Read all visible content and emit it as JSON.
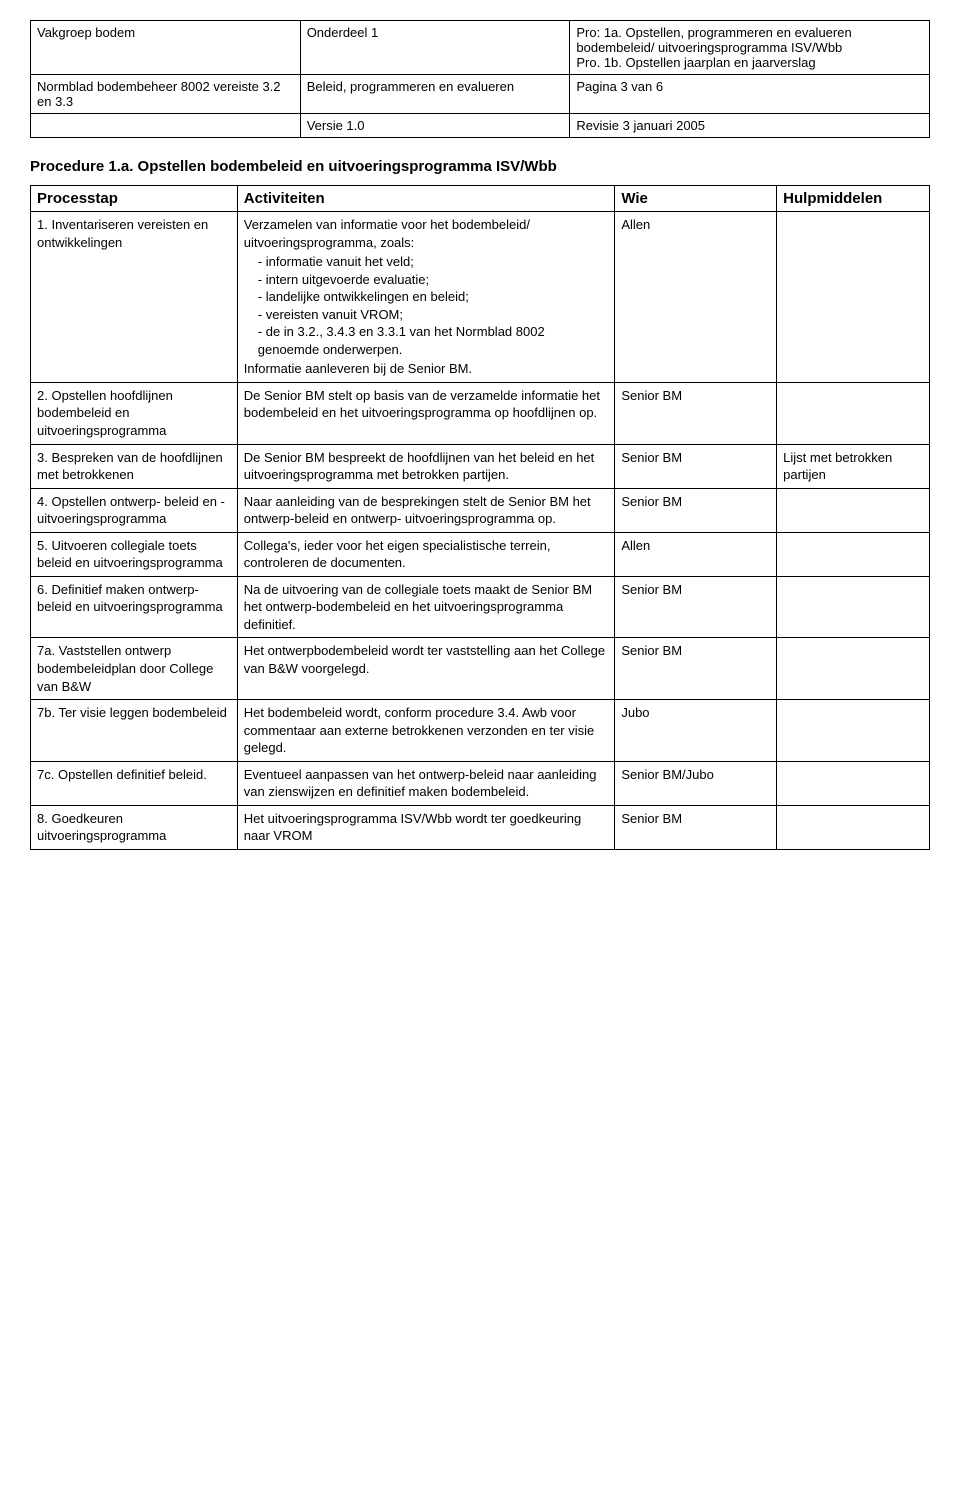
{
  "header": {
    "r1c1": "Vakgroep bodem",
    "r1c2": "Onderdeel 1",
    "r1c3": "Pro: 1a. Opstellen, programmeren en evalueren bodembeleid/ uitvoeringsprogramma ISV/Wbb\nPro. 1b. Opstellen jaarplan en jaarverslag",
    "r2c1": "Normblad bodembeheer 8002 vereiste 3.2 en 3.3",
    "r2c2": "Beleid, programmeren en evalueren",
    "r2c3": "Pagina 3 van 6",
    "r3c2": "Versie 1.0",
    "r3c3": "Revisie 3 januari 2005"
  },
  "sectionTitle": "Procedure 1.a. Opstellen bodembeleid en uitvoeringsprogramma ISV/Wbb",
  "cols": {
    "step": "Processtap",
    "act": "Activiteiten",
    "who": "Wie",
    "aid": "Hulpmiddelen"
  },
  "rows": [
    {
      "step": "1. Inventariseren vereisten en ontwikkelingen",
      "act_intro": "Verzamelen van informatie voor het bodembeleid/ uitvoeringsprogramma, zoals:",
      "act_items": [
        "informatie vanuit het veld;",
        "intern uitgevoerde evaluatie;",
        "landelijke ontwikkelingen en beleid;",
        "vereisten vanuit VROM;",
        "de in 3.2., 3.4.3 en 3.3.1 van het Normblad 8002 genoemde onderwerpen."
      ],
      "act_outro": "Informatie aanleveren bij de Senior BM.",
      "who": "Allen",
      "aid": ""
    },
    {
      "step": "2. Opstellen hoofdlijnen bodembeleid en uitvoeringsprogramma",
      "act": "De Senior BM stelt op basis van de verzamelde informatie het bodembeleid en het uitvoeringsprogramma op hoofdlijnen op.",
      "who": "Senior BM",
      "aid": ""
    },
    {
      "step": "3. Bespreken van de hoofdlijnen met betrokkenen",
      "act": "De Senior BM bespreekt de hoofdlijnen van het beleid en het uitvoeringsprogramma met betrokken partijen.",
      "who": "Senior BM",
      "aid": "Lijst met betrokken partijen"
    },
    {
      "step": "4. Opstellen ontwerp- beleid en - uitvoeringsprogramma",
      "act": "Naar aanleiding van de besprekingen stelt de Senior BM het ontwerp-beleid en ontwerp- uitvoeringsprogramma op.",
      "who": "Senior BM",
      "aid": ""
    },
    {
      "step": "5. Uitvoeren collegiale toets beleid en uitvoeringsprogramma",
      "act": "Collega's, ieder voor het eigen specialistische terrein, controleren de documenten.",
      "who": "Allen",
      "aid": ""
    },
    {
      "step": "6. Definitief maken ontwerp-beleid en uitvoeringsprogramma",
      "act": "Na de uitvoering van de collegiale toets maakt de Senior BM het ontwerp-bodembeleid en het uitvoeringsprogramma definitief.",
      "who": "Senior BM",
      "aid": ""
    },
    {
      "step": "7a. Vaststellen ontwerp bodembeleidplan door College van B&W",
      "act": "Het ontwerpbodembeleid wordt ter vaststelling aan het College van B&W voorgelegd.",
      "who": "Senior BM",
      "aid": ""
    },
    {
      "step": "7b. Ter visie leggen bodembeleid",
      "act": "Het bodembeleid wordt, conform procedure 3.4. Awb voor commentaar aan externe betrokkenen verzonden en ter visie gelegd.",
      "who": "Jubo",
      "aid": ""
    },
    {
      "step": "7c. Opstellen definitief beleid.",
      "act": "Eventueel aanpassen van het ontwerp-beleid naar aanleiding van zienswijzen en definitief maken bodembeleid.",
      "who": "Senior BM/Jubo",
      "aid": ""
    },
    {
      "step": "8. Goedkeuren uitvoeringsprogramma",
      "act": "Het uitvoeringsprogramma ISV/Wbb wordt ter goedkeuring naar VROM",
      "who": "Senior BM",
      "aid": ""
    }
  ]
}
